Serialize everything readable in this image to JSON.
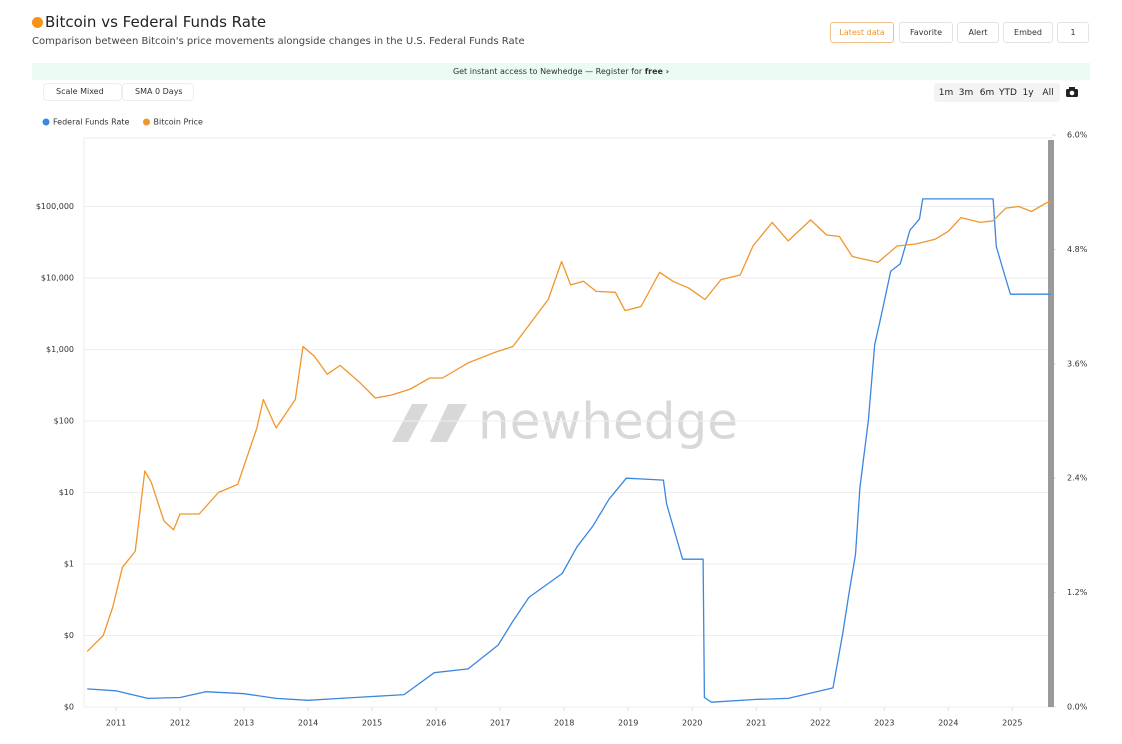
{
  "header": {
    "title": "Bitcoin vs Federal Funds Rate",
    "subtitle": "Comparison between Bitcoin's price movements alongside changes in the U.S. Federal Funds Rate",
    "buttons": [
      "Latest data",
      "Favorite",
      "Alert",
      "Embed",
      "1"
    ]
  },
  "banner": {
    "text": "Get instant access to Newhedge — Register for",
    "link": "free ›"
  },
  "controls": {
    "scale": "Scale Mixed",
    "sma": "SMA 0 Days",
    "ranges": [
      "1m",
      "3m",
      "6m",
      "YTD",
      "1y",
      "All"
    ]
  },
  "watermark": "newhedge",
  "chart_data": {
    "type": "line",
    "ylog": true,
    "grid": true,
    "legend": "top-left",
    "xlim": [
      2010.5,
      2025.62
    ],
    "xticks": [
      2011,
      2012,
      2013,
      2014,
      2015,
      2016,
      2017,
      2018,
      2019,
      2020,
      2021,
      2022,
      2023,
      2024,
      2025
    ],
    "ylim": [
      0.01,
      1000000
    ],
    "yticks": [
      {
        "value": 0.01,
        "label": "$0"
      },
      {
        "value": 0.1,
        "label": "$0"
      },
      {
        "value": 1,
        "label": "$1"
      },
      {
        "value": 10,
        "label": "$10"
      },
      {
        "value": 100,
        "label": "$100"
      },
      {
        "value": 1000,
        "label": "$1,000"
      },
      {
        "value": 10000,
        "label": "$10,000"
      },
      {
        "value": 100000,
        "label": "$100,000"
      }
    ],
    "y2lim": [
      0,
      6
    ],
    "y2ticks": [
      {
        "value": 0,
        "label": "0.0%"
      },
      {
        "value": 1.2,
        "label": "1.2%"
      },
      {
        "value": 2.4,
        "label": "2.4%"
      },
      {
        "value": 3.6,
        "label": "3.6%"
      },
      {
        "value": 4.8,
        "label": "4.8%"
      },
      {
        "value": 6,
        "label": "6.0%"
      }
    ],
    "series": [
      {
        "name": "Federal Funds Rate",
        "color": "#3b86e0",
        "axis": "y2",
        "x": [
          2010.55,
          2011.0,
          2011.5,
          2012.0,
          2012.4,
          2013.0,
          2013.5,
          2014.0,
          2014.5,
          2015.0,
          2015.5,
          2015.97,
          2016.5,
          2016.97,
          2017.2,
          2017.45,
          2017.97,
          2018.2,
          2018.45,
          2018.7,
          2018.97,
          2019.55,
          2019.6,
          2019.72,
          2019.85,
          2020.17,
          2020.19,
          2020.3,
          2021.0,
          2021.5,
          2022.2,
          2022.35,
          2022.45,
          2022.55,
          2022.62,
          2022.75,
          2022.85,
          2022.95,
          2023.1,
          2023.25,
          2023.4,
          2023.55,
          2023.6,
          2024.7,
          2024.75,
          2024.85,
          2024.97,
          2025.6
        ],
        "values": [
          0.19,
          0.17,
          0.09,
          0.1,
          0.16,
          0.14,
          0.09,
          0.07,
          0.09,
          0.11,
          0.13,
          0.36,
          0.4,
          0.65,
          0.9,
          1.15,
          1.4,
          1.68,
          1.9,
          2.18,
          2.4,
          2.38,
          2.13,
          1.85,
          1.55,
          1.55,
          0.1,
          0.05,
          0.08,
          0.09,
          0.2,
          0.77,
          1.2,
          1.6,
          2.3,
          3.0,
          3.8,
          4.1,
          4.57,
          4.65,
          5.0,
          5.12,
          5.33,
          5.33,
          4.83,
          4.6,
          4.33,
          4.33
        ]
      },
      {
        "name": "Bitcoin Price",
        "color": "#f0962c",
        "axis": "y",
        "x": [
          2010.55,
          2010.8,
          2010.95,
          2011.1,
          2011.3,
          2011.45,
          2011.55,
          2011.75,
          2011.9,
          2012.0,
          2012.3,
          2012.6,
          2012.9,
          2013.2,
          2013.3,
          2013.5,
          2013.8,
          2013.92,
          2014.1,
          2014.3,
          2014.5,
          2014.8,
          2015.05,
          2015.3,
          2015.6,
          2015.9,
          2016.1,
          2016.5,
          2016.9,
          2017.2,
          2017.5,
          2017.75,
          2017.96,
          2018.1,
          2018.3,
          2018.5,
          2018.8,
          2018.95,
          2019.2,
          2019.49,
          2019.7,
          2019.95,
          2020.2,
          2020.45,
          2020.75,
          2020.95,
          2021.25,
          2021.5,
          2021.85,
          2022.1,
          2022.3,
          2022.5,
          2022.9,
          2023.2,
          2023.5,
          2023.8,
          2024.0,
          2024.2,
          2024.5,
          2024.7,
          2024.9,
          2025.1,
          2025.3,
          2025.5,
          2025.58,
          2025.6
        ],
        "values": [
          0.06,
          0.1,
          0.25,
          0.9,
          1.5,
          20,
          14,
          4,
          3,
          5,
          5,
          10,
          13,
          80,
          200,
          80,
          200,
          1100,
          800,
          450,
          600,
          350,
          210,
          230,
          280,
          400,
          400,
          650,
          900,
          1100,
          2500,
          5000,
          17000,
          8000,
          9000,
          6500,
          6300,
          3500,
          4000,
          12000,
          9000,
          7200,
          5000,
          9500,
          11000,
          28000,
          60000,
          33000,
          65000,
          40000,
          38000,
          20000,
          16500,
          28000,
          30000,
          35000,
          45000,
          70000,
          60000,
          63000,
          95000,
          100000,
          85000,
          108000,
          118000,
          112000
        ]
      }
    ]
  }
}
